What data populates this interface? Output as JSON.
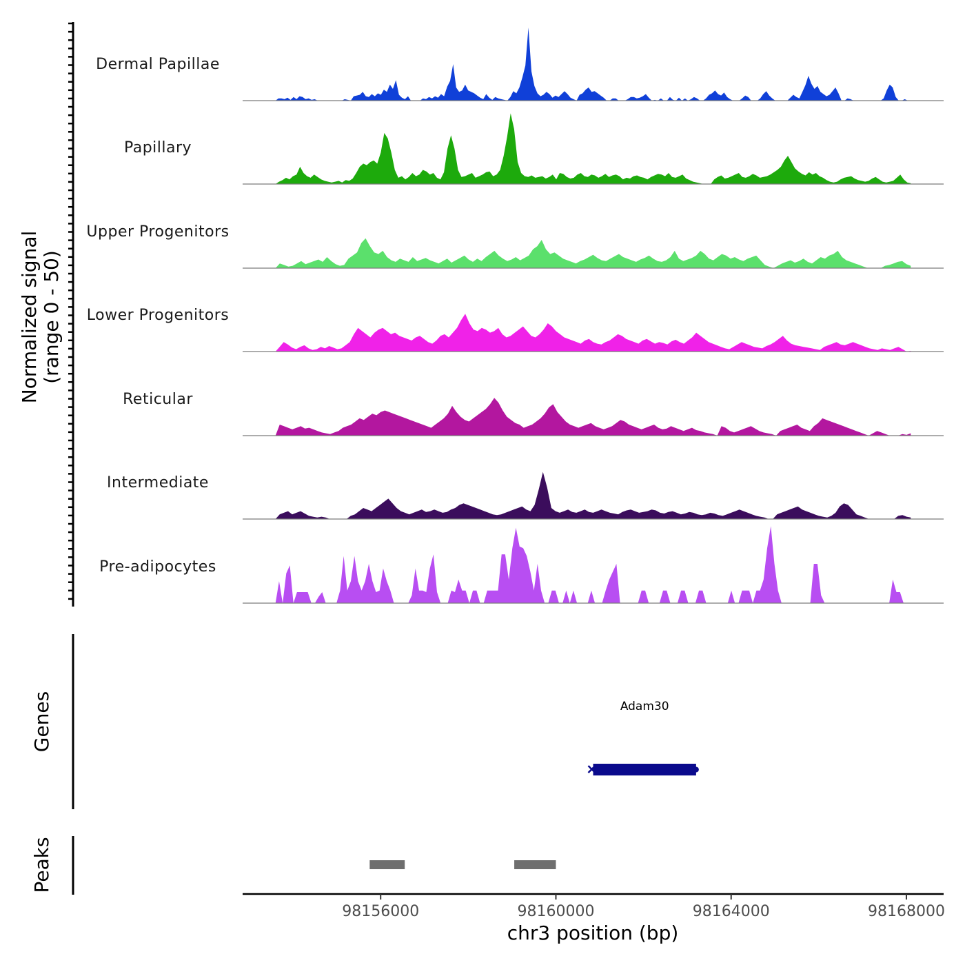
{
  "chart_data": {
    "type": "area",
    "title": "",
    "ylabel": "Normalized signal\n(range 0 - 50)",
    "xlabel": "chr3 position (bp)",
    "xlim": [
      98152850,
      98168850
    ],
    "ylim": [
      0,
      50
    ],
    "x_ticks": [
      98156000,
      98160000,
      98164000,
      98168000
    ],
    "x_tick_labels": [
      "98156000",
      "98160000",
      "98164000",
      "98168000"
    ],
    "signal_x_range": [
      98153600,
      98168100
    ],
    "tracks": [
      {
        "name": "Dermal Papillae",
        "color": "#1040d8",
        "values": [
          0,
          3,
          3,
          2,
          4,
          1,
          5,
          2,
          6,
          5,
          2,
          3,
          1,
          2,
          0,
          0,
          0,
          0,
          0,
          0,
          0,
          0,
          0,
          2,
          1,
          0,
          6,
          7,
          8,
          12,
          6,
          5,
          9,
          6,
          10,
          8,
          15,
          12,
          22,
          16,
          28,
          8,
          4,
          2,
          6,
          0,
          0,
          0,
          0,
          3,
          2,
          5,
          3,
          6,
          4,
          9,
          6,
          19,
          27,
          50,
          18,
          12,
          14,
          22,
          14,
          12,
          10,
          7,
          4,
          2,
          9,
          4,
          1,
          5,
          3,
          2,
          1,
          0,
          5,
          13,
          10,
          18,
          32,
          48,
          100,
          40,
          20,
          10,
          6,
          8,
          12,
          9,
          4,
          7,
          5,
          9,
          13,
          9,
          4,
          2,
          0,
          8,
          10,
          15,
          18,
          12,
          13,
          10,
          7,
          4,
          0,
          0,
          3,
          3,
          0,
          0,
          0,
          2,
          5,
          5,
          3,
          4,
          6,
          9,
          4,
          0,
          1,
          0,
          3,
          0,
          0,
          5,
          1,
          0,
          4,
          0,
          3,
          0,
          2,
          5,
          3,
          0,
          0,
          3,
          8,
          10,
          14,
          9,
          7,
          11,
          5,
          2,
          0,
          0,
          0,
          3,
          7,
          5,
          0,
          0,
          0,
          3,
          9,
          13,
          7,
          3,
          0,
          0,
          0,
          0,
          0,
          4,
          8,
          5,
          3,
          12,
          21,
          34,
          23,
          16,
          20,
          12,
          9,
          6,
          8,
          13,
          18,
          10,
          0,
          0,
          3,
          2,
          0,
          0,
          0,
          0,
          0,
          0,
          0,
          0,
          0,
          0,
          3,
          14,
          22,
          18,
          5,
          0,
          0,
          2,
          0,
          0
        ],
        "scale": 0.93
      },
      {
        "name": "Papillary",
        "color": "#1daa0c",
        "values": [
          0,
          3,
          5,
          8,
          6,
          10,
          12,
          22,
          14,
          10,
          8,
          12,
          9,
          6,
          4,
          3,
          2,
          3,
          4,
          2,
          5,
          4,
          7,
          14,
          22,
          26,
          24,
          28,
          30,
          26,
          40,
          65,
          58,
          40,
          18,
          8,
          10,
          6,
          9,
          14,
          10,
          12,
          18,
          16,
          12,
          14,
          8,
          6,
          15,
          45,
          62,
          45,
          18,
          9,
          10,
          12,
          14,
          8,
          10,
          12,
          15,
          16,
          10,
          12,
          18,
          36,
          60,
          90,
          70,
          28,
          14,
          10,
          9,
          11,
          8,
          9,
          10,
          7,
          9,
          12,
          6,
          14,
          13,
          9,
          7,
          8,
          12,
          14,
          10,
          9,
          12,
          11,
          8,
          10,
          13,
          9,
          11,
          12,
          10,
          6,
          8,
          7,
          10,
          11,
          9,
          8,
          6,
          9,
          11,
          13,
          12,
          10,
          14,
          9,
          8,
          10,
          12,
          7,
          5,
          3,
          2,
          1,
          0,
          0,
          0,
          6,
          9,
          11,
          7,
          8,
          10,
          12,
          14,
          9,
          8,
          10,
          13,
          11,
          8,
          9,
          10,
          12,
          15,
          18,
          22,
          30,
          36,
          28,
          20,
          16,
          13,
          11,
          15,
          12,
          14,
          10,
          8,
          5,
          3,
          2,
          3,
          6,
          8,
          9,
          10,
          7,
          5,
          4,
          3,
          4,
          7,
          9,
          6,
          3,
          2,
          3,
          4,
          8,
          12,
          6,
          2,
          1
        ]
      },
      {
        "name": "Upper Progenitors",
        "color": "#5be06c",
        "values": [
          0,
          6,
          4,
          2,
          3,
          6,
          9,
          5,
          7,
          9,
          11,
          8,
          14,
          9,
          5,
          3,
          4,
          12,
          16,
          20,
          32,
          38,
          28,
          20,
          18,
          22,
          14,
          10,
          8,
          12,
          10,
          8,
          14,
          9,
          11,
          13,
          10,
          8,
          6,
          9,
          12,
          7,
          10,
          13,
          16,
          11,
          8,
          12,
          9,
          14,
          18,
          22,
          16,
          12,
          9,
          11,
          14,
          10,
          13,
          16,
          24,
          28,
          36,
          24,
          18,
          20,
          16,
          12,
          10,
          8,
          6,
          9,
          11,
          14,
          17,
          13,
          10,
          9,
          12,
          15,
          18,
          14,
          12,
          10,
          8,
          11,
          13,
          16,
          12,
          9,
          8,
          10,
          14,
          22,
          12,
          9,
          11,
          13,
          16,
          22,
          18,
          12,
          10,
          14,
          18,
          16,
          12,
          14,
          11,
          9,
          12,
          14,
          16,
          10,
          4,
          2,
          0,
          3,
          6,
          8,
          10,
          7,
          9,
          12,
          8,
          6,
          10,
          14,
          12,
          16,
          18,
          22,
          14,
          10,
          8,
          6,
          4,
          2,
          0,
          0,
          0,
          0,
          3,
          4,
          6,
          8,
          9,
          5,
          3
        ]
      },
      {
        "name": "Lower Progenitors",
        "color": "#f022e8",
        "values": [
          0,
          6,
          12,
          9,
          5,
          3,
          6,
          8,
          4,
          2,
          3,
          6,
          4,
          7,
          5,
          3,
          4,
          8,
          12,
          22,
          30,
          26,
          22,
          18,
          24,
          28,
          30,
          26,
          22,
          24,
          20,
          18,
          16,
          14,
          18,
          20,
          16,
          12,
          10,
          14,
          20,
          22,
          18,
          24,
          30,
          40,
          48,
          36,
          28,
          26,
          30,
          28,
          24,
          26,
          30,
          22,
          18,
          20,
          24,
          28,
          32,
          26,
          20,
          18,
          22,
          28,
          36,
          32,
          26,
          22,
          18,
          16,
          14,
          12,
          10,
          14,
          16,
          12,
          10,
          9,
          12,
          14,
          18,
          22,
          20,
          16,
          14,
          12,
          10,
          14,
          16,
          13,
          10,
          12,
          11,
          9,
          13,
          15,
          12,
          10,
          14,
          18,
          24,
          20,
          16,
          12,
          10,
          8,
          6,
          4,
          3,
          6,
          9,
          12,
          10,
          8,
          6,
          5,
          4,
          7,
          9,
          12,
          16,
          20,
          14,
          10,
          8,
          7,
          6,
          5,
          4,
          3,
          2,
          6,
          8,
          10,
          12,
          9,
          8,
          10,
          12,
          10,
          8,
          6,
          4,
          3,
          2,
          4,
          3,
          2,
          4,
          6,
          3,
          0,
          1
        ]
      },
      {
        "name": "Reticular",
        "color": "#b3179f",
        "values": [
          0,
          14,
          12,
          10,
          8,
          10,
          12,
          9,
          10,
          8,
          6,
          4,
          3,
          2,
          4,
          6,
          10,
          12,
          14,
          18,
          22,
          20,
          24,
          28,
          26,
          30,
          32,
          30,
          28,
          26,
          24,
          22,
          20,
          18,
          16,
          14,
          12,
          10,
          14,
          18,
          22,
          28,
          38,
          30,
          24,
          20,
          18,
          22,
          26,
          30,
          34,
          40,
          48,
          42,
          32,
          24,
          20,
          16,
          14,
          10,
          12,
          14,
          18,
          22,
          28,
          36,
          40,
          30,
          24,
          18,
          14,
          12,
          10,
          12,
          14,
          16,
          12,
          10,
          8,
          10,
          12,
          16,
          20,
          18,
          14,
          12,
          10,
          8,
          10,
          12,
          14,
          10,
          8,
          9,
          12,
          10,
          8,
          6,
          8,
          10,
          7,
          6,
          4,
          3,
          2,
          0,
          12,
          10,
          6,
          4,
          6,
          8,
          10,
          12,
          9,
          6,
          4,
          3,
          2,
          0,
          6,
          8,
          10,
          12,
          14,
          10,
          8,
          6,
          12,
          16,
          22,
          20,
          18,
          16,
          14,
          12,
          10,
          8,
          6,
          4,
          2,
          0,
          3,
          6,
          4,
          2,
          0,
          0,
          0,
          2,
          1,
          3
        ]
      },
      {
        "name": "Intermediate",
        "color": "#3b0d5c",
        "values": [
          0,
          6,
          8,
          10,
          6,
          8,
          10,
          7,
          4,
          3,
          2,
          3,
          2,
          0,
          0,
          0,
          0,
          0,
          4,
          6,
          10,
          14,
          12,
          10,
          14,
          18,
          22,
          26,
          20,
          14,
          10,
          8,
          6,
          8,
          10,
          12,
          9,
          10,
          12,
          10,
          8,
          9,
          12,
          14,
          18,
          20,
          18,
          16,
          14,
          12,
          10,
          8,
          6,
          5,
          6,
          8,
          10,
          12,
          14,
          16,
          12,
          10,
          18,
          38,
          60,
          40,
          14,
          10,
          8,
          10,
          12,
          9,
          8,
          10,
          12,
          9,
          8,
          10,
          12,
          10,
          8,
          7,
          6,
          9,
          11,
          12,
          10,
          8,
          9,
          10,
          12,
          11,
          8,
          7,
          9,
          10,
          8,
          6,
          7,
          9,
          8,
          6,
          5,
          6,
          8,
          7,
          5,
          4,
          6,
          8,
          10,
          12,
          10,
          8,
          6,
          4,
          3,
          2,
          0,
          0,
          6,
          8,
          10,
          12,
          14,
          16,
          12,
          10,
          8,
          6,
          4,
          3,
          2,
          4,
          8,
          16,
          20,
          18,
          12,
          6,
          4,
          2,
          0,
          0,
          0,
          0,
          0,
          0,
          0,
          4,
          5,
          3,
          2
        ]
      },
      {
        "name": "Pre-adipocytes",
        "color": "#b84ef2",
        "values": [
          0,
          28,
          0,
          38,
          48,
          0,
          14,
          14,
          14,
          14,
          0,
          0,
          8,
          14,
          0,
          0,
          0,
          0,
          16,
          60,
          16,
          28,
          60,
          28,
          16,
          28,
          50,
          28,
          14,
          16,
          44,
          28,
          16,
          0,
          0,
          0,
          0,
          0,
          10,
          44,
          16,
          16,
          14,
          44,
          62,
          14,
          0,
          0,
          0,
          16,
          14,
          30,
          16,
          16,
          0,
          16,
          16,
          0,
          0,
          16,
          16,
          16,
          16,
          62,
          62,
          30,
          70,
          96,
          72,
          70,
          60,
          40,
          16,
          50,
          16,
          0,
          0,
          16,
          16,
          0,
          0,
          16,
          0,
          16,
          0,
          0,
          0,
          0,
          16,
          0,
          0,
          0,
          16,
          30,
          40,
          50,
          0,
          0,
          0,
          0,
          0,
          0,
          16,
          16,
          0,
          0,
          0,
          0,
          16,
          16,
          0,
          0,
          0,
          16,
          16,
          0,
          0,
          0,
          16,
          16,
          0,
          0,
          0,
          0,
          0,
          0,
          0,
          16,
          0,
          0,
          16,
          16,
          16,
          0,
          16,
          16,
          30,
          70,
          98,
          50,
          16,
          0,
          0,
          0,
          0,
          0,
          0,
          0,
          0,
          0,
          50,
          50,
          10,
          0,
          0,
          0,
          0,
          0,
          0,
          0,
          0,
          0,
          0,
          0,
          0,
          0,
          0,
          0,
          0,
          0,
          0,
          0,
          30,
          14,
          14,
          0,
          0,
          0
        ]
      }
    ],
    "genes": {
      "label": "Genes",
      "items": [
        {
          "name": "Adam30",
          "start": 98160850,
          "end": 98163200,
          "strand": "-",
          "color": "#0a0a8c"
        }
      ]
    },
    "peaks": {
      "label": "Peaks",
      "color": "#6e6e6e",
      "items": [
        {
          "start": 98155750,
          "end": 98156550
        },
        {
          "start": 98159050,
          "end": 98160000
        }
      ]
    }
  }
}
